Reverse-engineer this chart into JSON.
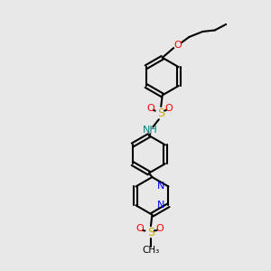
{
  "bg_color": "#e8e8e8",
  "line_color": "#000000",
  "bond_width": 1.5,
  "colors": {
    "N": "#0000ff",
    "O": "#ff0000",
    "S": "#ccaa00",
    "C": "#000000",
    "H": "#008080"
  },
  "xlim": [
    0,
    10
  ],
  "ylim": [
    0,
    10
  ]
}
